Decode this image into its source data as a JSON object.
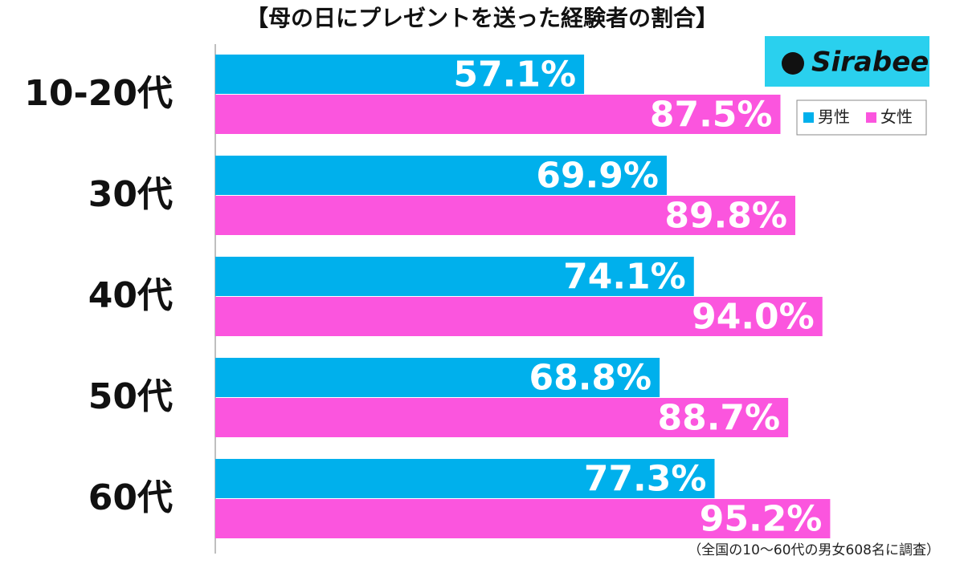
{
  "chart_data": {
    "type": "barh",
    "title": "【母の日にプレゼントを送った経験者の割合】",
    "categories": [
      "10-20代",
      "30代",
      "40代",
      "50代",
      "60代"
    ],
    "series": [
      {
        "name": "男性",
        "color": "#00b0ec",
        "values": [
          57.1,
          69.9,
          74.1,
          68.8,
          77.3
        ],
        "value_labels": [
          "57.1%",
          "69.9%",
          "74.1%",
          "68.8%",
          "77.3%"
        ]
      },
      {
        "name": "女性",
        "color": "#fb55de",
        "values": [
          87.5,
          89.8,
          94.0,
          88.7,
          95.2
        ],
        "value_labels": [
          "87.5%",
          "89.8%",
          "94.0%",
          "88.7%",
          "95.2%"
        ]
      }
    ],
    "xlim": [
      0,
      100
    ],
    "legend": "upper-right",
    "logo_text": "Sirabee",
    "note": "（全国の10〜60代の男女608名に調査）"
  }
}
